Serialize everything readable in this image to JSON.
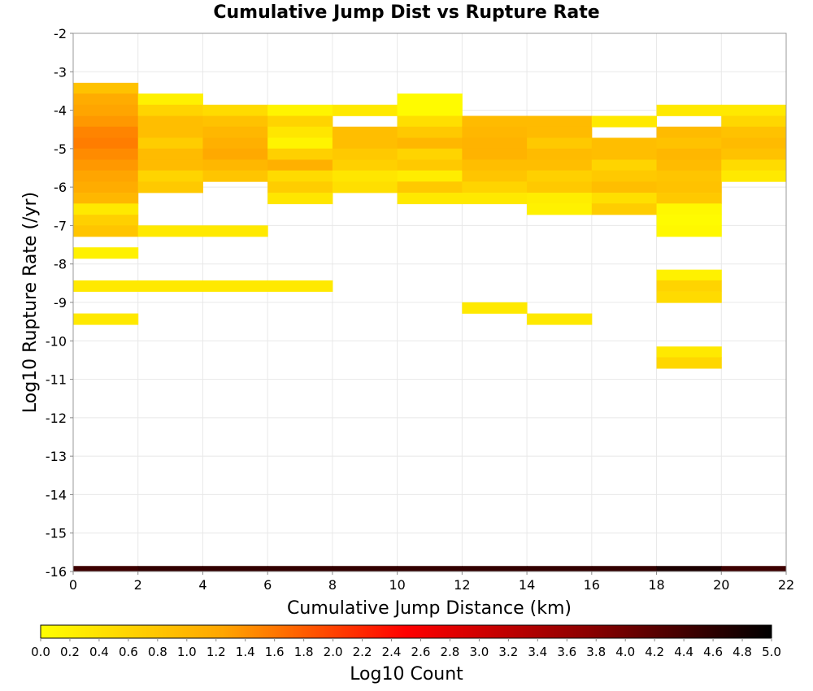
{
  "chart_data": {
    "type": "heatmap",
    "title": "Cumulative Jump Dist vs Rupture Rate",
    "xlabel": "Cumulative Jump Distance (km)",
    "ylabel": "Log10 Rupture Rate (/yr)",
    "colorbar_label": "Log10 Count",
    "xlim": [
      0,
      22
    ],
    "ylim": [
      -16,
      -2
    ],
    "x_ticks": [
      "0",
      "2",
      "4",
      "6",
      "8",
      "10",
      "12",
      "14",
      "16",
      "18",
      "20",
      "22"
    ],
    "y_ticks": [
      "-2",
      "-3",
      "-4",
      "-5",
      "-6",
      "-7",
      "-8",
      "-9",
      "-10",
      "-11",
      "-12",
      "-13",
      "-14",
      "-15",
      "-16"
    ],
    "colorbar_range": [
      0,
      5
    ],
    "colorbar_ticks": [
      "0.0",
      "0.2",
      "0.4",
      "0.6",
      "0.8",
      "1.0",
      "1.2",
      "1.4",
      "1.6",
      "1.8",
      "2.0",
      "2.2",
      "2.4",
      "2.6",
      "2.8",
      "3.0",
      "3.2",
      "3.4",
      "3.6",
      "3.8",
      "4.0",
      "4.2",
      "4.4",
      "4.6",
      "4.8",
      "5.0"
    ],
    "colormap_stops": [
      "#ffff00",
      "#ffa500",
      "#ff0000",
      "#8b0000",
      "#000000"
    ],
    "x_bin_width": 2,
    "y_bin_height": 0.286,
    "grid": true,
    "cells": [
      {
        "x": 0,
        "y": -3.43,
        "v": 0.85
      },
      {
        "x": 0,
        "y": -3.71,
        "v": 1.15
      },
      {
        "x": 0,
        "y": -4.0,
        "v": 1.25
      },
      {
        "x": 0,
        "y": -4.29,
        "v": 1.35
      },
      {
        "x": 0,
        "y": -4.57,
        "v": 1.5
      },
      {
        "x": 0,
        "y": -4.86,
        "v": 1.55
      },
      {
        "x": 0,
        "y": -5.14,
        "v": 1.45
      },
      {
        "x": 0,
        "y": -5.43,
        "v": 1.35
      },
      {
        "x": 0,
        "y": -5.71,
        "v": 1.25
      },
      {
        "x": 0,
        "y": -6.0,
        "v": 1.15
      },
      {
        "x": 0,
        "y": -6.29,
        "v": 1.0
      },
      {
        "x": 0,
        "y": -6.57,
        "v": 0.3
      },
      {
        "x": 0,
        "y": -6.86,
        "v": 0.65
      },
      {
        "x": 0,
        "y": -7.14,
        "v": 0.8
      },
      {
        "x": 0,
        "y": -7.71,
        "v": 0.2
      },
      {
        "x": 0,
        "y": -8.57,
        "v": 0.3
      },
      {
        "x": 0,
        "y": -9.43,
        "v": 0.3
      },
      {
        "x": 2,
        "y": -3.71,
        "v": 0.2
      },
      {
        "x": 2,
        "y": -4.0,
        "v": 0.6
      },
      {
        "x": 2,
        "y": -4.29,
        "v": 0.9
      },
      {
        "x": 2,
        "y": -4.57,
        "v": 0.9
      },
      {
        "x": 2,
        "y": -4.86,
        "v": 0.7
      },
      {
        "x": 2,
        "y": -5.14,
        "v": 0.95
      },
      {
        "x": 2,
        "y": -5.43,
        "v": 0.95
      },
      {
        "x": 2,
        "y": -5.71,
        "v": 0.6
      },
      {
        "x": 2,
        "y": -6.0,
        "v": 0.75
      },
      {
        "x": 2,
        "y": -7.14,
        "v": 0.3
      },
      {
        "x": 2,
        "y": -8.57,
        "v": 0.3
      },
      {
        "x": 4,
        "y": -4.0,
        "v": 0.5
      },
      {
        "x": 4,
        "y": -4.29,
        "v": 0.85
      },
      {
        "x": 4,
        "y": -4.57,
        "v": 1.0
      },
      {
        "x": 4,
        "y": -4.86,
        "v": 1.1
      },
      {
        "x": 4,
        "y": -5.14,
        "v": 1.2
      },
      {
        "x": 4,
        "y": -5.43,
        "v": 1.0
      },
      {
        "x": 4,
        "y": -5.71,
        "v": 0.8
      },
      {
        "x": 4,
        "y": -7.14,
        "v": 0.3
      },
      {
        "x": 4,
        "y": -8.57,
        "v": 0.3
      },
      {
        "x": 6,
        "y": -4.0,
        "v": 0.15
      },
      {
        "x": 6,
        "y": -4.29,
        "v": 0.6
      },
      {
        "x": 6,
        "y": -4.57,
        "v": 0.35
      },
      {
        "x": 6,
        "y": -4.86,
        "v": 0.15
      },
      {
        "x": 6,
        "y": -5.14,
        "v": 0.65
      },
      {
        "x": 6,
        "y": -5.43,
        "v": 1.1
      },
      {
        "x": 6,
        "y": -5.71,
        "v": 0.5
      },
      {
        "x": 6,
        "y": -6.0,
        "v": 0.7
      },
      {
        "x": 6,
        "y": -6.29,
        "v": 0.35
      },
      {
        "x": 6,
        "y": -8.57,
        "v": 0.3
      },
      {
        "x": 8,
        "y": -4.0,
        "v": 0.3
      },
      {
        "x": 8,
        "y": -4.57,
        "v": 0.9
      },
      {
        "x": 8,
        "y": -4.86,
        "v": 0.9
      },
      {
        "x": 8,
        "y": -5.14,
        "v": 0.75
      },
      {
        "x": 8,
        "y": -5.43,
        "v": 0.65
      },
      {
        "x": 8,
        "y": -5.71,
        "v": 0.35
      },
      {
        "x": 8,
        "y": -6.0,
        "v": 0.45
      },
      {
        "x": 10,
        "y": -3.71,
        "v": 0.05
      },
      {
        "x": 10,
        "y": -4.0,
        "v": 0.05
      },
      {
        "x": 10,
        "y": -4.29,
        "v": 0.45
      },
      {
        "x": 10,
        "y": -4.57,
        "v": 0.75
      },
      {
        "x": 10,
        "y": -4.86,
        "v": 1.0
      },
      {
        "x": 10,
        "y": -5.14,
        "v": 0.6
      },
      {
        "x": 10,
        "y": -5.43,
        "v": 0.75
      },
      {
        "x": 10,
        "y": -5.71,
        "v": 0.25
      },
      {
        "x": 10,
        "y": -6.0,
        "v": 0.75
      },
      {
        "x": 10,
        "y": -6.29,
        "v": 0.3
      },
      {
        "x": 12,
        "y": -4.29,
        "v": 0.95
      },
      {
        "x": 12,
        "y": -4.57,
        "v": 1.0
      },
      {
        "x": 12,
        "y": -4.86,
        "v": 1.05
      },
      {
        "x": 12,
        "y": -5.14,
        "v": 1.05
      },
      {
        "x": 12,
        "y": -5.43,
        "v": 0.9
      },
      {
        "x": 12,
        "y": -5.71,
        "v": 0.8
      },
      {
        "x": 12,
        "y": -6.0,
        "v": 0.6
      },
      {
        "x": 12,
        "y": -6.29,
        "v": 0.3
      },
      {
        "x": 12,
        "y": -9.14,
        "v": 0.3
      },
      {
        "x": 14,
        "y": -4.29,
        "v": 0.95
      },
      {
        "x": 14,
        "y": -4.57,
        "v": 0.95
      },
      {
        "x": 14,
        "y": -4.86,
        "v": 0.75
      },
      {
        "x": 14,
        "y": -5.14,
        "v": 0.95
      },
      {
        "x": 14,
        "y": -5.43,
        "v": 0.9
      },
      {
        "x": 14,
        "y": -5.71,
        "v": 0.65
      },
      {
        "x": 14,
        "y": -6.0,
        "v": 0.75
      },
      {
        "x": 14,
        "y": -6.29,
        "v": 0.25
      },
      {
        "x": 14,
        "y": -6.57,
        "v": 0.2
      },
      {
        "x": 14,
        "y": -9.43,
        "v": 0.3
      },
      {
        "x": 16,
        "y": -4.29,
        "v": 0.3
      },
      {
        "x": 16,
        "y": -4.86,
        "v": 0.9
      },
      {
        "x": 16,
        "y": -5.14,
        "v": 0.9
      },
      {
        "x": 16,
        "y": -5.43,
        "v": 0.6
      },
      {
        "x": 16,
        "y": -5.71,
        "v": 0.75
      },
      {
        "x": 16,
        "y": -6.0,
        "v": 0.9
      },
      {
        "x": 16,
        "y": -6.29,
        "v": 0.45
      },
      {
        "x": 16,
        "y": -6.57,
        "v": 0.7
      },
      {
        "x": 18,
        "y": -4.0,
        "v": 0.3
      },
      {
        "x": 18,
        "y": -4.57,
        "v": 0.95
      },
      {
        "x": 18,
        "y": -4.86,
        "v": 0.85
      },
      {
        "x": 18,
        "y": -5.14,
        "v": 1.0
      },
      {
        "x": 18,
        "y": -5.43,
        "v": 0.95
      },
      {
        "x": 18,
        "y": -5.71,
        "v": 0.8
      },
      {
        "x": 18,
        "y": -6.0,
        "v": 0.85
      },
      {
        "x": 18,
        "y": -6.29,
        "v": 0.75
      },
      {
        "x": 18,
        "y": -6.57,
        "v": 0.1
      },
      {
        "x": 18,
        "y": -6.86,
        "v": 0.05
      },
      {
        "x": 18,
        "y": -7.14,
        "v": 0.1
      },
      {
        "x": 18,
        "y": -8.29,
        "v": 0.2
      },
      {
        "x": 18,
        "y": -8.57,
        "v": 0.6
      },
      {
        "x": 18,
        "y": -8.86,
        "v": 0.5
      },
      {
        "x": 18,
        "y": -10.29,
        "v": 0.3
      },
      {
        "x": 18,
        "y": -10.57,
        "v": 0.55
      },
      {
        "x": 20,
        "y": -4.0,
        "v": 0.3
      },
      {
        "x": 20,
        "y": -4.29,
        "v": 0.55
      },
      {
        "x": 20,
        "y": -4.57,
        "v": 0.85
      },
      {
        "x": 20,
        "y": -4.86,
        "v": 0.95
      },
      {
        "x": 20,
        "y": -5.14,
        "v": 0.85
      },
      {
        "x": 20,
        "y": -5.43,
        "v": 0.5
      },
      {
        "x": 20,
        "y": -5.71,
        "v": 0.3
      }
    ],
    "bottom_band": [
      {
        "x": 0,
        "v": 4.45
      },
      {
        "x": 2,
        "v": 4.55
      },
      {
        "x": 4,
        "v": 4.55
      },
      {
        "x": 6,
        "v": 4.55
      },
      {
        "x": 8,
        "v": 4.55
      },
      {
        "x": 10,
        "v": 4.55
      },
      {
        "x": 12,
        "v": 4.55
      },
      {
        "x": 14,
        "v": 4.55
      },
      {
        "x": 16,
        "v": 4.55
      },
      {
        "x": 18,
        "v": 4.75
      },
      {
        "x": 20,
        "v": 4.45
      }
    ]
  }
}
